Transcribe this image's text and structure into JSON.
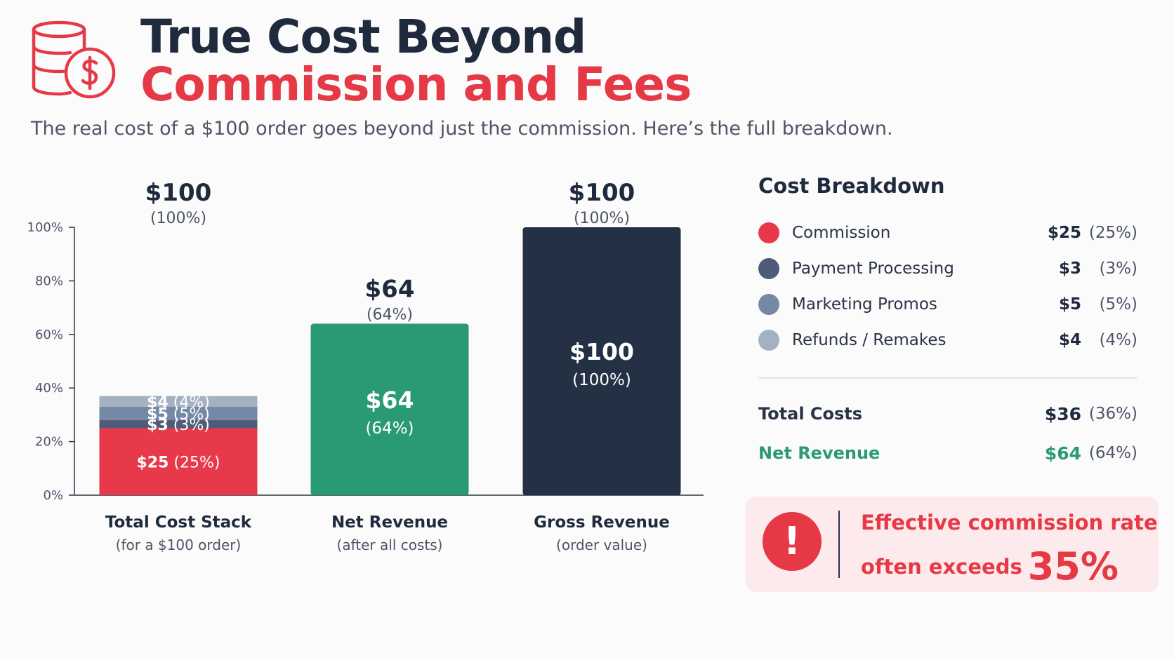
{
  "header": {
    "title_line1": "True Cost Beyond",
    "title_line2": "Commission and Fees",
    "subtitle": "The real cost of a $100 order goes beyond just the commission. Here’s the full breakdown.",
    "icon": "coins-dollar-icon"
  },
  "colors": {
    "commission": "#e8394a",
    "payment_processing": "#4f5b78",
    "marketing_promos": "#7589a6",
    "refunds_remakes": "#a4b1c1",
    "net_revenue": "#2a9a72",
    "gross_revenue": "#243145",
    "accent_red": "#e63946"
  },
  "chart_data": {
    "type": "bar",
    "stacked": true,
    "ylim": [
      0,
      100
    ],
    "y_ticks": [
      "0%",
      "20%",
      "40%",
      "60%",
      "80%",
      "100%"
    ],
    "y_tick_values": [
      0,
      20,
      40,
      60,
      80,
      100
    ],
    "categories": [
      {
        "name": "Total Cost Stack",
        "sublabel": "(for a $100 order)",
        "top_value": "$100",
        "top_pct": "(100%)",
        "segments": [
          {
            "key": "commission",
            "value": 25,
            "amount": "$25",
            "pct": "(25%)"
          },
          {
            "key": "payment_processing",
            "value": 3,
            "amount": "$3",
            "pct": "(3%)"
          },
          {
            "key": "marketing_promos",
            "value": 5,
            "amount": "$5",
            "pct": "(5%)"
          },
          {
            "key": "refunds_remakes",
            "value": 4,
            "amount": "$4",
            "pct": "(4%)"
          }
        ]
      },
      {
        "name": "Net Revenue",
        "sublabel": "(after all costs)",
        "top_value": "$64",
        "top_pct": "(64%)",
        "value": 64,
        "inner_value": "$64",
        "inner_pct": "(64%)",
        "color_key": "net_revenue"
      },
      {
        "name": "Gross Revenue",
        "sublabel": "(order value)",
        "top_value": "$100",
        "top_pct": "(100%)",
        "value": 100,
        "inner_value": "$100",
        "inner_pct": "(100%)",
        "color_key": "gross_revenue"
      }
    ]
  },
  "breakdown": {
    "heading": "Cost Breakdown",
    "items": [
      {
        "label": "Commission",
        "value": "$25",
        "pct": "(25%)",
        "color_key": "commission"
      },
      {
        "label": "Payment Processing",
        "value": "$3",
        "pct": "(3%)",
        "color_key": "payment_processing"
      },
      {
        "label": "Marketing Promos",
        "value": "$5",
        "pct": "(5%)",
        "color_key": "marketing_promos"
      },
      {
        "label": "Refunds / Remakes",
        "value": "$4",
        "pct": "(4%)",
        "color_key": "refunds_remakes"
      }
    ],
    "total": {
      "label": "Total Costs",
      "value": "$36",
      "pct": "(36%)"
    },
    "net": {
      "label": "Net Revenue",
      "value": "$64",
      "pct": "(64%)"
    }
  },
  "callout": {
    "icon": "exclamation-icon",
    "line1": "Effective commission rate",
    "line2": "often exceeds",
    "big": "35%"
  }
}
